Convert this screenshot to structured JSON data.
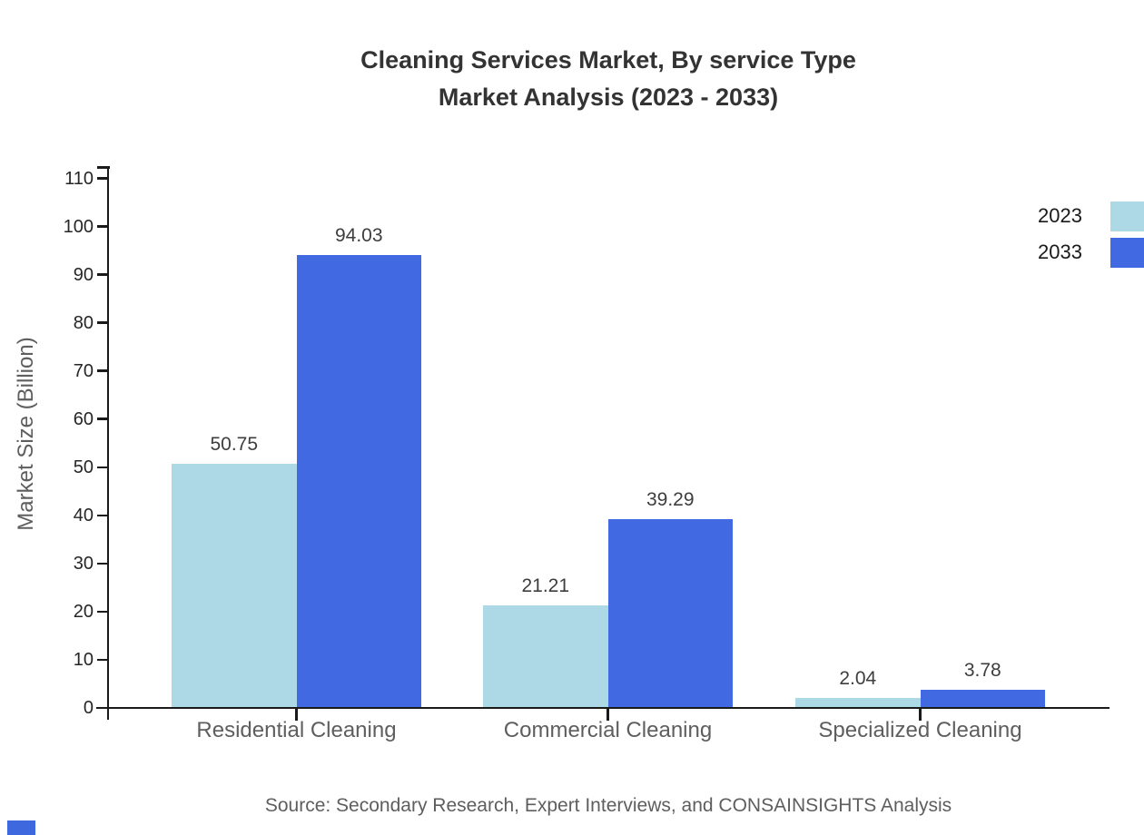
{
  "title": {
    "line1": "Cleaning Services Market, By service Type",
    "line2": "Market Analysis (2023 - 2033)"
  },
  "source": "Source: Secondary Research, Expert Interviews, and CONSAINSIGHTS Analysis",
  "brand_color": "#3e68dd",
  "legend": {
    "items": [
      {
        "label": "2023",
        "color": "#add8e6"
      },
      {
        "label": "2033",
        "color": "#4169e1"
      }
    ]
  },
  "chart_data": {
    "type": "bar",
    "title": "Cleaning Services Market, By service Type Market Analysis (2023 - 2033)",
    "categories": [
      "Residential Cleaning",
      "Commercial Cleaning",
      "Specialized Cleaning"
    ],
    "series": [
      {
        "name": "2023",
        "color": "#add8e6",
        "values": [
          50.75,
          21.21,
          2.04
        ]
      },
      {
        "name": "2033",
        "color": "#4169e1",
        "values": [
          94.03,
          39.29,
          3.78
        ]
      }
    ],
    "xlabel": "",
    "ylabel": "Market Size (Billion)",
    "ylim": [
      0,
      110
    ],
    "yticks": [
      0,
      10,
      20,
      30,
      40,
      50,
      60,
      70,
      80,
      90,
      100,
      110
    ],
    "grid": false,
    "legend_position": "top-right",
    "value_labels": true,
    "axis_color": "#1a1a1a"
  }
}
